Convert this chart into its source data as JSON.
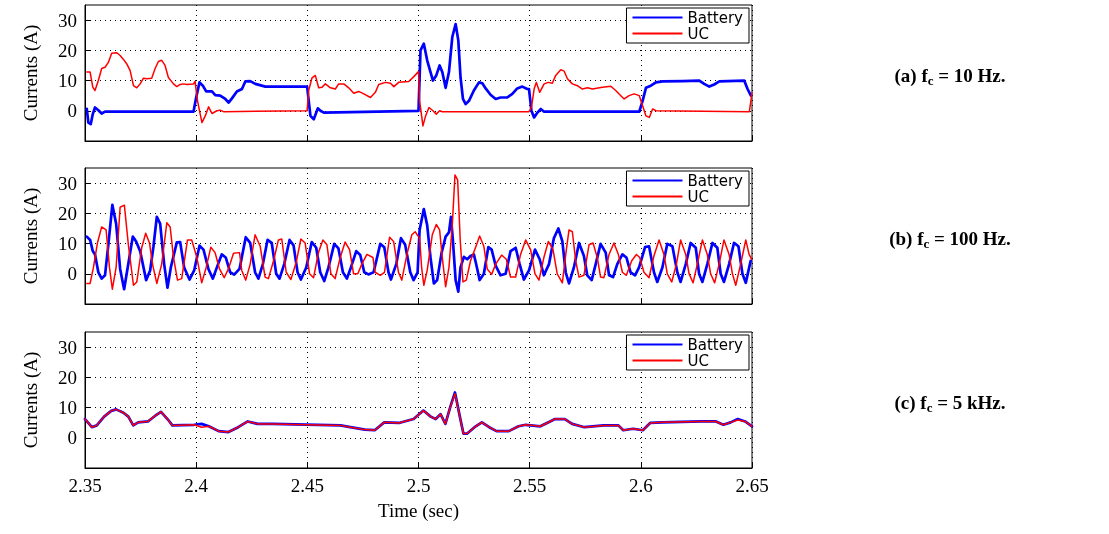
{
  "chart_data": [
    {
      "type": "line",
      "annotations": [
        "(a) f$_{c}$ = 10 Hz."
      ],
      "ylabel": "Currents (A)",
      "xlim": [
        2.35,
        2.65
      ],
      "xticks": [
        2.35,
        2.4,
        2.45,
        2.5,
        2.55,
        2.6,
        2.65
      ],
      "ylim": [
        -10,
        35
      ],
      "yticks": [
        0,
        10,
        20,
        30
      ],
      "tick_labels": "y",
      "grid": true,
      "legend": "top right",
      "marker": "none",
      "line_style": "solid",
      "series": [
        {
          "name": "Battery",
          "color": "#0000ff",
          "x": [
            2.3508,
            2.3515,
            2.3526,
            2.3535,
            2.3545,
            2.356,
            2.3575,
            2.359,
            2.3988,
            2.4,
            2.4015,
            2.403,
            2.4045,
            2.4071,
            2.4086,
            2.4108,
            2.4131,
            2.4146,
            2.4161,
            2.4183,
            2.4206,
            2.4221,
            2.4243,
            2.4266,
            2.4311,
            2.4499,
            2.4514,
            2.4529,
            2.4547,
            2.4559,
            2.4574,
            2.5,
            2.5009,
            2.5024,
            2.5039,
            2.5054,
            2.5065,
            2.508,
            2.5095,
            2.5107,
            2.5122,
            2.5137,
            2.5152,
            2.5167,
            2.5179,
            2.5189,
            2.52,
            2.5212,
            2.5227,
            2.5249,
            2.5272,
            2.5287,
            2.5302,
            2.5324,
            2.5347,
            2.5369,
            2.5399,
            2.5422,
            2.5444,
            2.5467,
            2.5489,
            2.5497,
            2.5508,
            2.552,
            2.5535,
            2.555,
            2.5565,
            2.5993,
            2.6008,
            2.6023,
            2.6045,
            2.6068,
            2.6098,
            2.6188,
            2.6263,
            2.6285,
            2.6308,
            2.633,
            2.6353,
            2.6465,
            2.648,
            2.6495
          ],
          "values": [
            0.6,
            -3.9,
            -4.4,
            -1.1,
            1.1,
            0.2,
            -0.9,
            -0.3,
            -0.3,
            4.4,
            9.4,
            8.3,
            6.4,
            6.4,
            5.2,
            5,
            3.9,
            2.7,
            4.1,
            6.4,
            7.2,
            9.7,
            9.8,
            8.9,
            8,
            8,
            -1.7,
            -2.8,
            0.8,
            0,
            -0.6,
            0,
            20,
            22.2,
            16.7,
            12.8,
            10,
            11.7,
            15,
            12.8,
            7.6,
            12.8,
            24.4,
            28.7,
            23.3,
            11.1,
            3.9,
            2.2,
            3.3,
            6.7,
            9.4,
            9.1,
            7.4,
            5.3,
            3.9,
            4.4,
            4.4,
            5.6,
            7.4,
            8,
            7.2,
            7.2,
            0,
            -2.2,
            -0.6,
            0.6,
            -0.3,
            -0.3,
            3.3,
            7.6,
            8.3,
            9.4,
            9.7,
            9.8,
            10,
            8.9,
            8,
            8.7,
            9.7,
            10,
            7.2,
            5
          ]
        },
        {
          "name": "UC",
          "color": "#ff0000",
          "x": [
            2.3508,
            2.3523,
            2.3535,
            2.3545,
            2.356,
            2.3575,
            2.359,
            2.3605,
            2.362,
            2.3643,
            2.3658,
            2.3673,
            2.3688,
            2.3703,
            2.3718,
            2.3733,
            2.3748,
            2.3763,
            2.3778,
            2.38,
            2.3815,
            2.383,
            2.3845,
            2.386,
            2.3875,
            2.3898,
            2.3913,
            2.3928,
            2.3943,
            2.3958,
            2.3988,
            2.3995,
            2.4006,
            2.4026,
            2.4041,
            2.4056,
            2.4071,
            2.4093,
            2.4108,
            2.4123,
            2.4499,
            2.4506,
            2.4521,
            2.4536,
            2.4551,
            2.4566,
            2.4581,
            2.4604,
            2.4626,
            2.4641,
            2.4664,
            2.4686,
            2.4709,
            2.4731,
            2.4754,
            2.4784,
            2.4806,
            2.4821,
            2.4851,
            2.4874,
            2.4889,
            2.4911,
            2.4956,
            2.4979,
            2.5,
            2.5005,
            2.502,
            2.5032,
            2.5047,
            2.5065,
            2.508,
            2.5095,
            2.5107,
            2.5497,
            2.5508,
            2.552,
            2.553,
            2.5545,
            2.5565,
            2.5584,
            2.5602,
            2.5617,
            2.564,
            2.5655,
            2.567,
            2.5692,
            2.5715,
            2.5737,
            2.576,
            2.5782,
            2.5827,
            2.5865,
            2.5887,
            2.591,
            2.5925,
            2.5947,
            2.597,
            2.5993,
            2.6008,
            2.6023,
            2.6038,
            2.6053,
            2.6068,
            2.6488,
            2.6495,
            2.65
          ],
          "values": [
            12.8,
            12.8,
            7.8,
            6.7,
            10,
            14,
            14.4,
            16,
            19,
            19.2,
            18.3,
            17,
            15.5,
            13.3,
            8.3,
            7.6,
            8.9,
            10.8,
            10.6,
            10.8,
            13.9,
            16.3,
            16.7,
            15,
            11,
            8.9,
            8,
            8.7,
            8.9,
            8.7,
            8.9,
            9.7,
            3.3,
            -3.9,
            -1.7,
            1.3,
            -0.9,
            0,
            0.2,
            -0.3,
            0,
            6.7,
            10.9,
            11.7,
            7.6,
            7.8,
            8.9,
            7.6,
            7.2,
            8.9,
            8.9,
            7.6,
            5.8,
            6.4,
            5.6,
            4.4,
            6.1,
            8.7,
            9.4,
            9.1,
            8,
            9.4,
            9.7,
            11.3,
            13,
            3.3,
            -5,
            -1.7,
            1.1,
            0,
            -1.1,
            0,
            -0.3,
            -0.3,
            1.1,
            7.2,
            9.4,
            6.1,
            8.9,
            9.4,
            9.1,
            11.7,
            13.6,
            13.1,
            10.6,
            8.9,
            8.3,
            7.2,
            7.6,
            7.2,
            7.8,
            8.1,
            6.7,
            5,
            3.9,
            5,
            5.6,
            5,
            1.7,
            -1.7,
            -2.2,
            0.6,
            0,
            -0.3,
            3.3,
            6
          ]
        }
      ]
    },
    {
      "type": "line",
      "annotations": [
        "(b) f$_{c}$ = 100 Hz."
      ],
      "ylabel": "Currents (A)",
      "xlim": [
        2.35,
        2.65
      ],
      "xticks": [
        2.35,
        2.4,
        2.45,
        2.5,
        2.55,
        2.6,
        2.65
      ],
      "ylim": [
        -10,
        35
      ],
      "yticks": [
        0,
        10,
        20,
        30
      ],
      "tick_labels": "y",
      "grid": true,
      "legend": "top right",
      "marker": "none",
      "line_style": "solid",
      "series": [
        {
          "name": "Battery",
          "color": "#0000ff",
          "x": [
            2.3508,
            2.3523,
            2.3535,
            2.3545,
            2.356,
            2.3575,
            2.359,
            2.3605,
            2.3623,
            2.364,
            2.3658,
            2.3676,
            2.3691,
            2.3715,
            2.373,
            2.3748,
            2.3775,
            2.3793,
            2.3808,
            2.3823,
            2.3838,
            2.3856,
            2.3871,
            2.3886,
            2.3913,
            2.3928,
            2.3946,
            2.397,
            2.3991,
            2.4015,
            2.4033,
            2.4055,
            2.4075,
            2.4096,
            2.4115,
            2.4133,
            2.4153,
            2.4171,
            2.4195,
            2.4223,
            2.4243,
            2.4265,
            2.428,
            2.43,
            2.4321,
            2.434,
            2.436,
            2.4375,
            2.4396,
            2.442,
            2.4438,
            2.4456,
            2.4471,
            2.4495,
            2.452,
            2.454,
            2.4558,
            2.4576,
            2.4595,
            2.4621,
            2.464,
            2.466,
            2.4678,
            2.4696,
            2.472,
            2.4738,
            2.4756,
            2.4775,
            2.4798,
            2.4828,
            2.4846,
            2.4865,
            2.4876,
            2.49,
            2.4921,
            2.494,
            2.4963,
            2.4978,
            2.4996,
            2.5005,
            2.5024,
            2.5039,
            2.5054,
            2.5069,
            2.5084,
            2.5104,
            2.5122,
            2.5137,
            2.5146,
            2.5155,
            2.5167,
            2.5179,
            2.5189,
            2.5204,
            2.5219,
            2.5234,
            2.5249,
            2.526,
            2.5275,
            2.5294,
            2.5314,
            2.5329,
            2.5347,
            2.5369,
            2.5392,
            2.5414,
            2.5437,
            2.5455,
            2.5474,
            2.5497,
            2.5524,
            2.5545,
            2.5564,
            2.5587,
            2.5609,
            2.5629,
            2.5647,
            2.5662,
            2.5677,
            2.5699,
            2.5722,
            2.5744,
            2.5759,
            2.5779,
            2.5797,
            2.5819,
            2.5842,
            2.5857,
            2.5875,
            2.5894,
            2.5917,
            2.5935,
            2.5954,
            2.5974,
            2.5992,
            2.6019,
            2.6037,
            2.6059,
            2.6074,
            2.6097,
            2.6119,
            2.6142,
            2.6164,
            2.6179,
            2.6202,
            2.6224,
            2.6247,
            2.6262,
            2.6277,
            2.6299,
            2.6322,
            2.6344,
            2.6359,
            2.6374,
            2.6397,
            2.6419,
            2.6439,
            2.6457,
            2.6472,
            2.6494
          ],
          "values": [
            12.3,
            11.2,
            7.5,
            6.4,
            0.5,
            -1.6,
            -0.5,
            9.6,
            22.8,
            16.6,
            1.6,
            -5.1,
            1.6,
            12.3,
            10.7,
            7.5,
            -2.1,
            1.1,
            9.1,
            18.8,
            16.6,
            3.2,
            -4.6,
            2.1,
            10.4,
            10.5,
            2.1,
            -1.9,
            1.1,
            9.3,
            8,
            1.6,
            -1.6,
            2.7,
            6.4,
            5.4,
            0.5,
            -0.3,
            1.6,
            12.1,
            10.2,
            0.5,
            -1.6,
            3.2,
            11.2,
            10.2,
            0,
            -1.6,
            3.2,
            11.2,
            9.4,
            0.5,
            -1.9,
            2.1,
            10.5,
            8.6,
            0.5,
            -2.4,
            2.1,
            9.9,
            8.4,
            0.5,
            -1.6,
            2.1,
            7.5,
            6.2,
            0.5,
            -0.2,
            0.5,
            9.9,
            8.8,
            0.5,
            -1.9,
            3.2,
            11.8,
            9.6,
            0.5,
            -2.1,
            0.5,
            14.5,
            21.4,
            16.1,
            5.4,
            -3.2,
            -2.1,
            7,
            12.3,
            13.7,
            18.8,
            10.7,
            -2.1,
            -5.9,
            2.1,
            5.6,
            4.8,
            5.9,
            6.4,
            3,
            -2.1,
            0,
            8.8,
            8,
            2.7,
            -0.5,
            0,
            7.5,
            8.6,
            3.2,
            -1.9,
            1.1,
            8,
            4.8,
            -0.5,
            3.2,
            11.8,
            15,
            10.7,
            0.5,
            -3.2,
            2.1,
            10.2,
            5.9,
            -0.5,
            -2.1,
            3.2,
            9.9,
            7,
            -0.5,
            -1.1,
            3.2,
            6.4,
            5.4,
            0.5,
            -0.5,
            2.1,
            8.8,
            9.1,
            0.5,
            -2.7,
            2.1,
            9.9,
            9.1,
            0.5,
            -2.7,
            3.2,
            10.2,
            8.6,
            0,
            -2.7,
            3.2,
            10.2,
            8.6,
            0,
            -2.7,
            3.2,
            10.2,
            9.1,
            0,
            -3,
            4.3
          ]
        },
        {
          "name": "UC",
          "color": "#ff0000",
          "x": [
            2.3508,
            2.3523,
            2.3538,
            2.3556,
            2.3575,
            2.3595,
            2.361,
            2.3623,
            2.364,
            2.3658,
            2.3677,
            2.3695,
            2.3718,
            2.3733,
            2.3755,
            2.3773,
            2.379,
            2.3805,
            2.3823,
            2.3845,
            2.3868,
            2.3883,
            2.3898,
            2.3916,
            2.3935,
            2.3961,
            2.398,
            2.4003,
            2.4025,
            2.4045,
            2.4066,
            2.4085,
            2.4105,
            2.4126,
            2.4145,
            2.4168,
            2.4195,
            2.4205,
            2.4223,
            2.4243,
            2.4265,
            2.4288,
            2.431,
            2.4325,
            2.4348,
            2.437,
            2.4385,
            2.4405,
            2.4426,
            2.445,
            2.4471,
            2.449,
            2.451,
            2.4528,
            2.455,
            2.457,
            2.4588,
            2.4606,
            2.4625,
            2.4648,
            2.467,
            2.469,
            2.4708,
            2.4727,
            2.4745,
            2.4768,
            2.4795,
            2.4805,
            2.4828,
            2.4847,
            2.487,
            2.4888,
            2.491,
            2.4925,
            2.4948,
            2.497,
            2.4985,
            2.5,
            2.5005,
            2.5014,
            2.5024,
            2.5039,
            2.5062,
            2.508,
            2.5095,
            2.5107,
            2.5122,
            2.5137,
            2.5152,
            2.5164,
            2.5176,
            2.5188,
            2.52,
            2.5215,
            2.5234,
            2.5257,
            2.5275,
            2.5294,
            2.5309,
            2.5329,
            2.5347,
            2.5374,
            2.5395,
            2.5414,
            2.5437,
            2.5459,
            2.5482,
            2.5504,
            2.5524,
            2.5542,
            2.5564,
            2.5584,
            2.5605,
            2.5624,
            2.5647,
            2.5665,
            2.5677,
            2.5692,
            2.5707,
            2.5722,
            2.5744,
            2.5767,
            2.5785,
            2.5804,
            2.5819,
            2.5834,
            2.5857,
            2.5879,
            2.5899,
            2.5917,
            2.5935,
            2.5959,
            2.598,
            2.5995,
            2.6014,
            2.6037,
            2.6059,
            2.6082,
            2.6104,
            2.6119,
            2.6139,
            2.616,
            2.6179,
            2.6202,
            2.6217,
            2.6235,
            2.6254,
            2.6277,
            2.6299,
            2.6314,
            2.6332,
            2.6352,
            2.6374,
            2.6397,
            2.6412,
            2.6427,
            2.6449,
            2.6472,
            2.6487,
            2.6499
          ],
          "values": [
            -3.2,
            -3.2,
            2.1,
            10.2,
            15.5,
            14.5,
            2.1,
            -5.1,
            2.1,
            22,
            22.7,
            9.6,
            -3.8,
            -2.7,
            8.6,
            13.4,
            10.2,
            2.7,
            -3.2,
            3.2,
            16.9,
            15.5,
            5.4,
            -2.1,
            -1.6,
            11.2,
            11.2,
            5.4,
            -3,
            2.1,
            8.8,
            7,
            1.6,
            -1.3,
            1.6,
            6.8,
            7,
            1.1,
            -2.1,
            3.2,
            12.9,
            9.1,
            -1.1,
            -1.6,
            4.3,
            11.2,
            11.5,
            0.5,
            -1.9,
            3.8,
            11.5,
            10.2,
            0,
            -1.3,
            7,
            11.2,
            9.6,
            0,
            -1.6,
            5.4,
            10.5,
            8,
            0,
            0,
            3.2,
            6.4,
            5.4,
            0.5,
            -0.5,
            0.5,
            12.1,
            10.7,
            0.5,
            -2.1,
            6.4,
            12.9,
            13.9,
            12.3,
            11.8,
            2.1,
            -3.8,
            1.1,
            12.9,
            16.3,
            14.5,
            5.4,
            -4.3,
            2.1,
            16.1,
            32.7,
            31.1,
            10.7,
            -2.7,
            -2.1,
            4.3,
            8.8,
            12.5,
            9.1,
            1.6,
            -0.2,
            3.2,
            6.2,
            4.8,
            -1.1,
            -1.1,
            6.4,
            11.2,
            8,
            0,
            -2.1,
            5.4,
            10.7,
            8,
            0,
            -3,
            8,
            14.5,
            13.9,
            4.3,
            -1.1,
            -0.5,
            9.6,
            10.2,
            5.4,
            -1.1,
            -1.3,
            6.4,
            10.2,
            6.4,
            0.5,
            -0.5,
            4.3,
            6.4,
            5.4,
            0.5,
            -1.3,
            5.9,
            11.2,
            6.4,
            0,
            -2.7,
            3.2,
            11.2,
            6.4,
            0,
            -3,
            3.2,
            11.2,
            6.4,
            0,
            -3,
            3.2,
            11.2,
            6.4,
            0,
            -3.8,
            3.2,
            11.2,
            6.4,
            4.8
          ]
        }
      ]
    },
    {
      "type": "line",
      "annotations": [
        "(c) f$_{c}$ = 5 kHz."
      ],
      "xlabel": "Time (sec)",
      "ylabel": "Currents (A)",
      "xlim": [
        2.35,
        2.65
      ],
      "xticks": [
        2.35,
        2.4,
        2.45,
        2.5,
        2.55,
        2.6,
        2.65
      ],
      "ylim": [
        -10,
        35
      ],
      "yticks": [
        0,
        10,
        20,
        30
      ],
      "grid": true,
      "legend": "top right",
      "marker": "none",
      "line_style": "solid",
      "x": [
        2.35,
        2.3531,
        2.3553,
        2.3586,
        2.3618,
        2.364,
        2.3673,
        2.3695,
        2.3717,
        2.3739,
        2.3783,
        2.3816,
        2.3842,
        2.3871,
        2.3893,
        2.3991,
        2.4024,
        2.4057,
        2.4101,
        2.4145,
        2.4189,
        2.4232,
        2.4276,
        2.4342,
        2.4649,
        2.4693,
        2.4759,
        2.4803,
        2.4846,
        2.4912,
        2.4978,
        2.5022,
        2.5055,
        2.5077,
        2.5099,
        2.5121,
        2.5143,
        2.5164,
        2.5186,
        2.5202,
        2.5219,
        2.5252,
        2.5285,
        2.5318,
        2.5351,
        2.5406,
        2.545,
        2.5482,
        2.5548,
        2.5592,
        2.5614,
        2.5658,
        2.5691,
        2.5746,
        2.5833,
        2.5899,
        2.5921,
        2.5965,
        2.6009,
        2.6042,
        2.6096,
        2.6272,
        2.6338,
        2.6371,
        2.6404,
        2.6436,
        2.6469,
        2.65
      ],
      "series": [
        {
          "name": "Battery",
          "color": "#0000ff",
          "values": [
            6.2,
            3.5,
            4.1,
            7,
            8.9,
            9.4,
            8.3,
            7,
            4.1,
            5.1,
            5.4,
            7.3,
            8.6,
            6.2,
            4.1,
            4.3,
            4.6,
            3.8,
            2.2,
            1.9,
            3.5,
            5.4,
            4.6,
            4.6,
            4.1,
            3.5,
            2.7,
            2.5,
            5.1,
            4.9,
            6.2,
            9,
            7,
            6.2,
            7.8,
            4.6,
            10.2,
            15,
            7,
            1.4,
            1.4,
            3.5,
            5.1,
            3.5,
            2.2,
            2.2,
            3.8,
            4.3,
            3.8,
            5.4,
            6.2,
            6.2,
            4.6,
            3.5,
            4.1,
            4.1,
            2.5,
            3,
            2.5,
            4.9,
            5.1,
            5.4,
            5.4,
            4.3,
            5.1,
            6.2,
            5.4,
            3.8
          ]
        },
        {
          "name": "UC",
          "color": "#ff0000",
          "values": [
            6.2,
            3.5,
            4.1,
            7,
            8.9,
            9.4,
            8.3,
            7,
            4.1,
            5.1,
            5.4,
            7.3,
            8.6,
            6.2,
            4.1,
            4.3,
            3.5,
            3.8,
            2.2,
            1.9,
            3.5,
            5.4,
            4.6,
            4.6,
            4.1,
            3.5,
            2.7,
            2.5,
            5.1,
            4.9,
            6.2,
            9,
            7,
            6.2,
            7.8,
            4.6,
            10.2,
            14.6,
            7,
            1.4,
            1.4,
            3.5,
            5.1,
            3.5,
            2.2,
            2.2,
            3.8,
            4.3,
            3.8,
            5.4,
            6.2,
            6.2,
            4.6,
            3.5,
            4.1,
            4.1,
            2.5,
            3,
            2.5,
            4.9,
            5.1,
            5.4,
            5.4,
            4.3,
            5.1,
            5.9,
            5.4,
            3.8
          ]
        }
      ]
    }
  ]
}
